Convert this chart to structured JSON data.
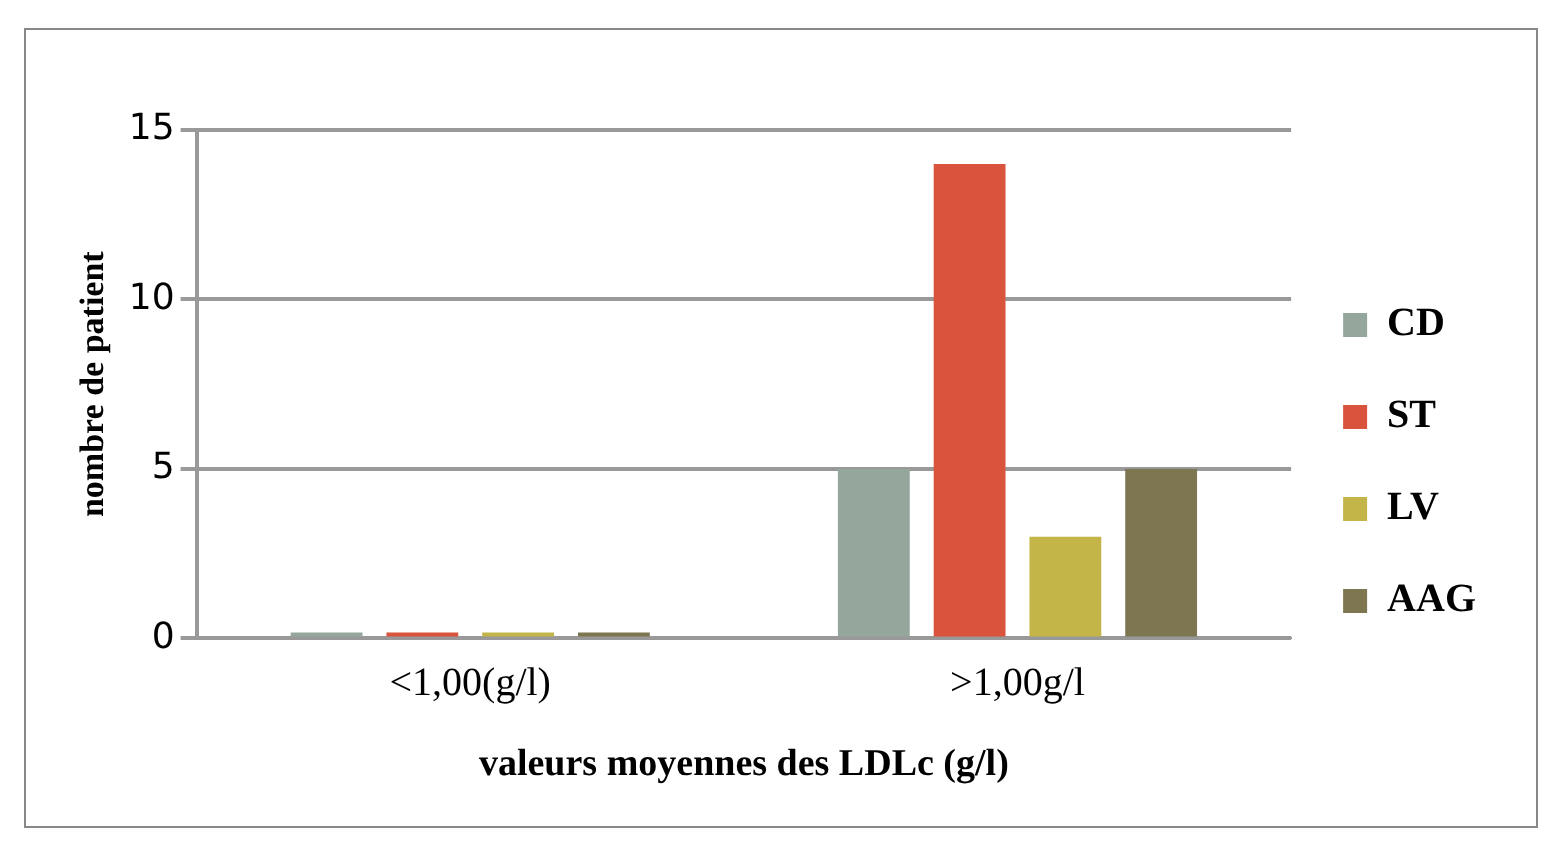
{
  "chart_data": {
    "type": "bar",
    "xlabel": "valeurs moyennes des LDLc (g/l)",
    "ylabel": "nombre de patient",
    "categories": [
      "<1,00(g/l)",
      ">1,00g/l"
    ],
    "series": [
      {
        "name": "CD",
        "color": "#95a79c",
        "values": [
          0,
          5
        ]
      },
      {
        "name": "ST",
        "color": "#d9533d",
        "values": [
          0,
          14
        ]
      },
      {
        "name": "LV",
        "color": "#c3b547",
        "values": [
          0,
          3
        ]
      },
      {
        "name": "AAG",
        "color": "#7d7651",
        "values": [
          0,
          5
        ]
      }
    ],
    "ylim": [
      0,
      15
    ],
    "yticks": [
      0,
      5,
      10,
      15
    ],
    "grid": "y",
    "legend": "right"
  }
}
